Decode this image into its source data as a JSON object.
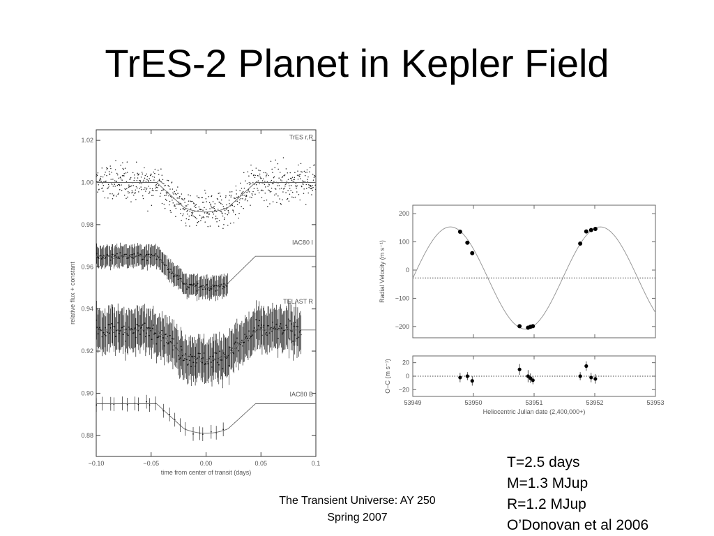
{
  "title": "TrES-2 Planet in Kepler Field",
  "facts": [
    "T=2.5 days",
    "M=1.3 MJup",
    "R=1.2 MJup",
    "O’Donovan et al 2006"
  ],
  "footer": {
    "line1": "The Transient Universe:  AY 250",
    "line2": "Spring 2007"
  },
  "chart_data": [
    {
      "type": "scatter",
      "xlabel": "time from center of transit (days)",
      "ylabel": "relative flux + constant",
      "xlim": [
        -0.1,
        0.1
      ],
      "ylim": [
        0.87,
        1.025
      ],
      "x_ticks": [
        "−0.10",
        "−0.05",
        "0.00",
        "0.05",
        "0.1"
      ],
      "y_ticks": [
        "1.02",
        "1.00",
        "0.98",
        "0.96",
        "0.94",
        "0.92",
        "0.90",
        "0.88"
      ],
      "series": [
        {
          "name": "TrES r,R",
          "baseline": 1.0,
          "depth": 0.014,
          "scatter": 0.0075,
          "n": 700,
          "errorbars": false
        },
        {
          "name": "IAC80 I",
          "baseline": 0.965,
          "depth": 0.015,
          "scatter": 0.0015,
          "n": 160,
          "errorbars": true,
          "xmax": 0.02
        },
        {
          "name": "TELAST R",
          "baseline": 0.93,
          "depth": 0.014,
          "scatter": 0.0035,
          "n": 260,
          "errorbars": true,
          "xmax": 0.087
        },
        {
          "name": "IAC80 B",
          "baseline": 0.895,
          "depth": 0.014,
          "scatter": 0.0008,
          "n": 22,
          "errorbars": true,
          "xmax": 0.018
        }
      ]
    },
    {
      "type": "scatter",
      "xlabel": "Heliocentric Julian date (2,400,000+)",
      "ylabel": "Radial Velocity (m s⁻¹)",
      "xlim": [
        53949,
        53953
      ],
      "ylim": [
        -240,
        230
      ],
      "x_ticks": [
        "53949",
        "53950",
        "53951",
        "53952",
        "53953"
      ],
      "y_ticks": [
        "200",
        "100",
        "0",
        "−100",
        "−200"
      ],
      "gamma": -28,
      "model": {
        "amplitude": 181,
        "period": 2.47063,
        "t_max": 53949.62
      },
      "points": {
        "x": [
          53949.78,
          53949.9,
          53949.98,
          53950.76,
          53950.9,
          53950.94,
          53950.98,
          53951.76,
          53951.86,
          53951.94,
          53952.01
        ],
        "y": [
          136,
          97,
          60,
          -199,
          -204,
          -201,
          -199,
          94,
          137,
          142,
          146
        ]
      }
    },
    {
      "type": "scatter",
      "xlabel": "Heliocentric Julian date (2,400,000+)",
      "ylabel": "O−C (m s⁻¹)",
      "xlim": [
        53949,
        53953
      ],
      "ylim": [
        -30,
        30
      ],
      "x_ticks": [
        "53949",
        "53950",
        "53951",
        "53952",
        "53953"
      ],
      "y_ticks": [
        "20",
        "0",
        "−20"
      ],
      "points": {
        "x": [
          53949.78,
          53949.9,
          53949.98,
          53950.76,
          53950.9,
          53950.94,
          53950.98,
          53951.76,
          53951.86,
          53951.94,
          53952.01
        ],
        "y": [
          -2,
          0,
          -7,
          10,
          0,
          -3,
          -6,
          0,
          15,
          -2,
          -4
        ],
        "err": [
          7,
          6,
          7,
          8,
          9,
          7,
          6,
          6,
          7,
          7,
          7
        ]
      }
    }
  ]
}
